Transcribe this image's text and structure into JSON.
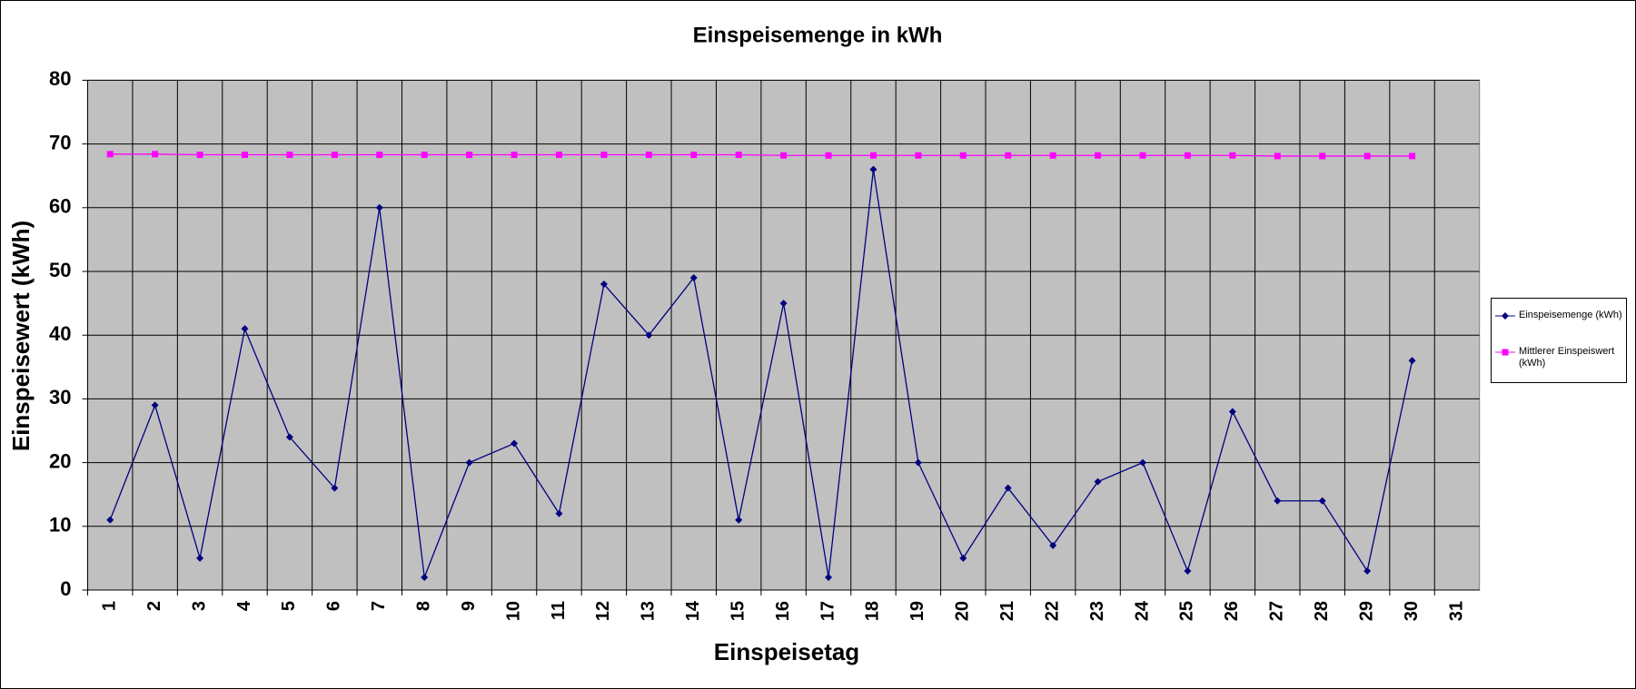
{
  "chart_data": {
    "type": "line",
    "title": "Einspeisemenge in kWh",
    "xlabel": "Einspeisetag",
    "ylabel": "Einspeisewert  (kWh)",
    "categories": [
      "1",
      "2",
      "3",
      "4",
      "5",
      "6",
      "7",
      "8",
      "9",
      "10",
      "11",
      "12",
      "13",
      "14",
      "15",
      "16",
      "17",
      "18",
      "19",
      "20",
      "21",
      "22",
      "23",
      "24",
      "25",
      "26",
      "27",
      "28",
      "29",
      "30",
      "31"
    ],
    "series": [
      {
        "name": "Einspeisemenge (kWh)",
        "color": "#000080",
        "marker": "diamond",
        "values": [
          11,
          29,
          5,
          41,
          24,
          16,
          60,
          2,
          20,
          23,
          12,
          48,
          40,
          49,
          11,
          45,
          2,
          66,
          20,
          5,
          16,
          7,
          17,
          20,
          3,
          28,
          14,
          14,
          3,
          36,
          null
        ]
      },
      {
        "name": "Mittlerer Einspeiswert (kWh)",
        "color": "#ff00ff",
        "marker": "square",
        "values": [
          68.4,
          68.4,
          68.3,
          68.3,
          68.3,
          68.3,
          68.3,
          68.3,
          68.3,
          68.3,
          68.3,
          68.3,
          68.3,
          68.3,
          68.3,
          68.2,
          68.2,
          68.2,
          68.2,
          68.2,
          68.2,
          68.2,
          68.2,
          68.2,
          68.2,
          68.2,
          68.1,
          68.1,
          68.1,
          68.1,
          null
        ]
      }
    ],
    "ylim": [
      0,
      80
    ],
    "yticks": [
      0,
      10,
      20,
      30,
      40,
      50,
      60,
      70,
      80
    ],
    "grid": true,
    "legend": "right"
  }
}
